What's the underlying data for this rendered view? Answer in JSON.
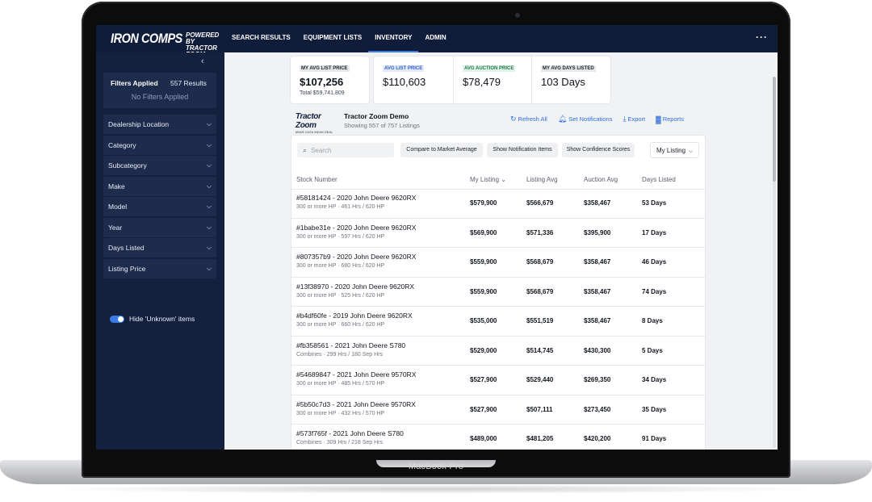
{
  "device": {
    "label": "MacBook Pro"
  },
  "brand": {
    "name": "IRON COMPS",
    "tagline": "POWERED BY TRACTOR ZOOM"
  },
  "nav": [
    {
      "label": "SEARCH RESULTS"
    },
    {
      "label": "EQUIPMENT LISTS"
    },
    {
      "label": "INVENTORY",
      "active": true
    },
    {
      "label": "ADMIN"
    }
  ],
  "sidebar": {
    "filters_applied_label": "Filters Applied",
    "results_count": "557 Results",
    "no_filters": "No Filters Applied",
    "filters": [
      {
        "label": "Dealership Location"
      },
      {
        "label": "Category"
      },
      {
        "label": "Subcategory"
      },
      {
        "label": "Make"
      },
      {
        "label": "Model"
      },
      {
        "label": "Year"
      },
      {
        "label": "Days Listed"
      },
      {
        "label": "Listing Price"
      }
    ],
    "hide_unknown_label": "Hide 'Unknown' items",
    "hide_unknown_on": true
  },
  "stats": {
    "my_avg_list_price": {
      "label": "MY AVG LIST PRICE",
      "value": "$107,256",
      "total": "Total $59,741,809"
    },
    "avg_list_price": {
      "label": "AVG LIST PRICE",
      "value": "$110,603"
    },
    "avg_auction_price": {
      "label": "AVG AUCTION PRICE",
      "value": "$78,479"
    },
    "my_avg_days_listed": {
      "label": "MY AVG DAYS LISTED",
      "value": "103 Days"
    }
  },
  "dealer": {
    "logo_text": "Tractor Zoom",
    "logo_tagline": "MAKE DATA MEAN DEAL",
    "name": "Tractor Zoom Demo",
    "showing": "Showing 557 of 757 Listings"
  },
  "actions": {
    "refresh": "Refresh All",
    "notifications": "Set Notifications",
    "export": "Export",
    "reports": "Reports"
  },
  "controls": {
    "search_placeholder": "Search",
    "compare": "Compare to Market Average",
    "show_notifications": "Show Notification Items",
    "show_confidence": "Show Confidence Scores",
    "view_select": "My Listing"
  },
  "table": {
    "headers": {
      "stock": "Stock Number",
      "my_listing": "My Listing",
      "listing_avg": "Listing Avg",
      "auction_avg": "Auction Avg",
      "days_listed": "Days Listed"
    },
    "sort_indicator": "⌄",
    "rows": [
      {
        "stock": "#58181424 - 2020 John Deere 9620RX",
        "spec": "300 or more HP · 461 Hrs / 620 HP",
        "my_listing": "$579,900",
        "listing_avg": "$566,679",
        "auction_avg": "$358,467",
        "days": "53 Days"
      },
      {
        "stock": "#1babe31e - 2020 John Deere 9620RX",
        "spec": "300 or more HP · 597 Hrs / 620 HP",
        "my_listing": "$569,900",
        "listing_avg": "$571,336",
        "auction_avg": "$395,900",
        "days": "17 Days"
      },
      {
        "stock": "#807357b9 - 2020 John Deere 9620RX",
        "spec": "300 or more HP · 680 Hrs / 620 HP",
        "my_listing": "$559,900",
        "listing_avg": "$568,679",
        "auction_avg": "$358,467",
        "days": "46 Days"
      },
      {
        "stock": "#13f38970 - 2020 John Deere 9620RX",
        "spec": "300 or more HP · 525 Hrs / 620 HP",
        "my_listing": "$559,900",
        "listing_avg": "$568,679",
        "auction_avg": "$358,467",
        "days": "74 Days"
      },
      {
        "stock": "#b4df60fe - 2019 John Deere 9620RX",
        "spec": "300 or more HP · 660 Hrs / 620 HP",
        "my_listing": "$535,000",
        "listing_avg": "$551,519",
        "auction_avg": "$358,467",
        "days": "8 Days"
      },
      {
        "stock": "#fb358561 - 2021 John Deere S780",
        "spec": "Combines · 299 Hrs / 180 Sep Hrs",
        "my_listing": "$529,000",
        "listing_avg": "$514,745",
        "auction_avg": "$430,300",
        "days": "5 Days"
      },
      {
        "stock": "#54689847 - 2021 John Deere 9570RX",
        "spec": "300 or more HP · 485 Hrs / 570 HP",
        "my_listing": "$527,900",
        "listing_avg": "$529,440",
        "auction_avg": "$269,350",
        "days": "34 Days"
      },
      {
        "stock": "#5b50c7d3 - 2021 John Deere 9570RX",
        "spec": "300 or more HP · 432 Hrs / 570 HP",
        "my_listing": "$527,900",
        "listing_avg": "$507,111",
        "auction_avg": "$273,450",
        "days": "35 Days"
      },
      {
        "stock": "#573f765f - 2021 John Deere S780",
        "spec": "Combines · 309 Hrs / 218 Sep Hrs",
        "my_listing": "$489,000",
        "listing_avg": "$481,205",
        "auction_avg": "$420,200",
        "days": "91 Days"
      }
    ]
  }
}
